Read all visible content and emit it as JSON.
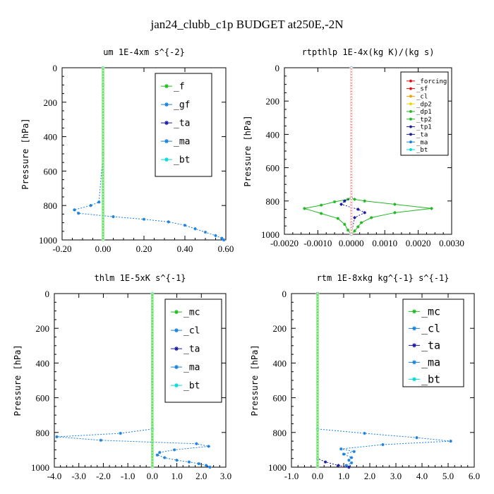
{
  "figure_title": "jan24_clubb_c1p  BUDGET at250E,-2N",
  "colors": {
    "green": "#22b822",
    "blue_dotted": "#1a7fd8",
    "navy": "#1a1aa0",
    "cyan": "#00d8d8",
    "red": "#e01010",
    "orange": "#f0a000",
    "yellow": "#e8d800"
  },
  "chart_data": [
    {
      "type": "line",
      "title": "um  1E-4xm s^{-2}",
      "xlabel": "",
      "ylabel": "Pressure [hPa]",
      "xlim": [
        -0.2,
        0.6
      ],
      "ylim": [
        1000,
        0
      ],
      "xticks": [
        -0.2,
        0.0,
        0.2,
        0.4,
        0.6
      ],
      "xtick_labels": [
        "-0.20",
        "0.00",
        "0.20",
        "0.40",
        "0.60"
      ],
      "yticks": [
        0,
        200,
        400,
        600,
        800,
        1000
      ],
      "ytick_labels": [
        "0",
        "200",
        "400",
        "600",
        "800",
        "1000"
      ],
      "legend": {
        "position": "top-right",
        "entries": [
          "_f",
          "_gf",
          "_ta",
          "_ma",
          "_bt"
        ]
      },
      "series": [
        {
          "name": "_gf",
          "color_key": "blue_dotted",
          "dashed": true,
          "x": [
            0.0,
            0.0,
            0.0,
            -0.02,
            -0.06,
            -0.14,
            -0.12,
            0.05,
            0.2,
            0.32,
            0.4,
            0.45,
            0.5,
            0.55,
            0.58,
            0.59
          ],
          "y": [
            0,
            100,
            500,
            780,
            800,
            825,
            845,
            865,
            880,
            895,
            915,
            935,
            955,
            975,
            990,
            1000
          ]
        },
        {
          "name": "_f",
          "color_key": "green",
          "dashed": false,
          "x": [
            0.0,
            0.0,
            0.0,
            0.0,
            0.0,
            0.0
          ],
          "y": [
            0,
            200,
            400,
            600,
            800,
            1000
          ]
        }
      ]
    },
    {
      "type": "line",
      "title": "rtpthlp  1E-4x(kg K)/(kg s)",
      "xlabel": "",
      "ylabel": "Pressure [hPa]",
      "xlim": [
        -0.002,
        0.003
      ],
      "ylim": [
        1000,
        0
      ],
      "xticks": [
        -0.002,
        -0.001,
        0.0,
        0.001,
        0.002,
        0.003
      ],
      "xtick_labels": [
        "-0.0020",
        "-0.0010",
        "0.0000",
        "0.0010",
        "0.0020",
        "0.0030"
      ],
      "yticks": [
        0,
        200,
        400,
        600,
        800,
        1000
      ],
      "ytick_labels": [
        "0",
        "200",
        "400",
        "600",
        "800",
        "1000"
      ],
      "legend": {
        "position": "top-right",
        "entries": [
          "_forcing",
          "_sf",
          "_cl",
          "_dp2",
          "_dp1",
          "_tp2",
          "_tp1",
          "_ta",
          "_ma",
          "_bt"
        ]
      },
      "series": [
        {
          "name": "_dp1",
          "color_key": "green",
          "dashed": false,
          "x": [
            0.0,
            0.0,
            0.0001,
            0.0004,
            0.0013,
            0.0024,
            0.0013,
            0.0006,
            0.0003,
            0.0002,
            0.0001,
            0.0
          ],
          "y": [
            0,
            780,
            790,
            800,
            820,
            845,
            870,
            900,
            930,
            955,
            980,
            1000
          ]
        },
        {
          "name": "_tp2",
          "color_key": "green",
          "dashed": false,
          "x": [
            0.0,
            0.0,
            -0.0001,
            -0.0005,
            -0.0009,
            -0.0014,
            -0.0009,
            -0.0004,
            -0.0002,
            -0.0001,
            0.0
          ],
          "y": [
            0,
            780,
            790,
            805,
            825,
            845,
            875,
            905,
            940,
            975,
            1000
          ]
        },
        {
          "name": "_ta",
          "color_key": "navy",
          "dashed": true,
          "x": [
            0.0,
            0.0,
            -0.0002,
            -0.0003,
            0.0002,
            0.0004,
            0.0001,
            0.0
          ],
          "y": [
            0,
            780,
            800,
            820,
            850,
            870,
            900,
            1000
          ]
        },
        {
          "name": "_forcing",
          "color_key": "red",
          "dashed": false,
          "x": [
            0.0,
            0.0
          ],
          "y": [
            0,
            1000
          ]
        }
      ]
    },
    {
      "type": "line",
      "title": "thlm  1E-5xK s^{-1}",
      "xlabel": "",
      "ylabel": "Pressure [hPa]",
      "xlim": [
        -4.0,
        3.0
      ],
      "ylim": [
        1000,
        0
      ],
      "xticks": [
        -4,
        -3,
        -2,
        -1,
        0,
        1,
        2,
        3
      ],
      "xtick_labels": [
        "-4.0",
        "-3.0",
        "-2.0",
        "-1.0",
        "0.0",
        "1.0",
        "2.0",
        "3.0"
      ],
      "yticks": [
        0,
        200,
        400,
        600,
        800,
        1000
      ],
      "ytick_labels": [
        "0",
        "200",
        "400",
        "600",
        "800",
        "1000"
      ],
      "legend": {
        "position": "top-right",
        "entries": [
          "_mc",
          "_cl",
          "_ta",
          "_ma",
          "_bt"
        ]
      },
      "series": [
        {
          "name": "_cl",
          "color_key": "blue_dotted",
          "dashed": true,
          "x": [
            0.0,
            0.0,
            -1.3,
            -3.9,
            -2.1,
            1.8,
            2.3,
            0.9,
            0.3,
            0.2,
            0.5,
            1.0,
            1.5,
            1.9,
            2.2,
            2.35
          ],
          "y": [
            0,
            780,
            805,
            825,
            845,
            865,
            880,
            900,
            915,
            930,
            945,
            960,
            970,
            980,
            990,
            1000
          ]
        },
        {
          "name": "_mc",
          "color_key": "green",
          "dashed": false,
          "x": [
            0.0,
            0.0,
            0.0,
            0.0,
            0.0,
            0.0
          ],
          "y": [
            0,
            200,
            400,
            600,
            800,
            1000
          ]
        }
      ]
    },
    {
      "type": "line",
      "title": "rtm  1E-8xkg kg^{-1} s^{-1}",
      "xlabel": "",
      "ylabel": "Pressure [hPa]",
      "xlim": [
        -1.0,
        6.0
      ],
      "ylim": [
        1000,
        0
      ],
      "xticks": [
        -1,
        0,
        1,
        2,
        3,
        4,
        5,
        6
      ],
      "xtick_labels": [
        "-1.0",
        "0.0",
        "1.0",
        "2.0",
        "3.0",
        "4.0",
        "5.0",
        "6.0"
      ],
      "yticks": [
        0,
        200,
        400,
        600,
        800,
        1000
      ],
      "ytick_labels": [
        "0",
        "200",
        "400",
        "600",
        "800",
        "1000"
      ],
      "legend": {
        "position": "top-right",
        "entries": [
          "_mc",
          "_cl",
          "_ta",
          "_ma",
          "_bt"
        ]
      },
      "series": [
        {
          "name": "_cl",
          "color_key": "blue_dotted",
          "dashed": true,
          "x": [
            0.0,
            0.0,
            1.8,
            3.8,
            5.1,
            2.5,
            0.9,
            1.4,
            1.0,
            1.3,
            1.2,
            1.3,
            1.1,
            1.2
          ],
          "y": [
            0,
            780,
            805,
            830,
            850,
            870,
            895,
            910,
            925,
            945,
            960,
            975,
            990,
            1000
          ]
        },
        {
          "name": "_ta",
          "color_key": "navy",
          "dashed": true,
          "x": [
            0.0,
            0.0,
            0.3,
            0.8,
            1.2
          ],
          "y": [
            0,
            950,
            970,
            990,
            1000
          ]
        },
        {
          "name": "_mc",
          "color_key": "green",
          "dashed": false,
          "x": [
            0.0,
            0.0,
            0.0,
            0.0,
            0.0,
            0.0
          ],
          "y": [
            0,
            200,
            400,
            600,
            800,
            1000
          ]
        }
      ]
    }
  ]
}
